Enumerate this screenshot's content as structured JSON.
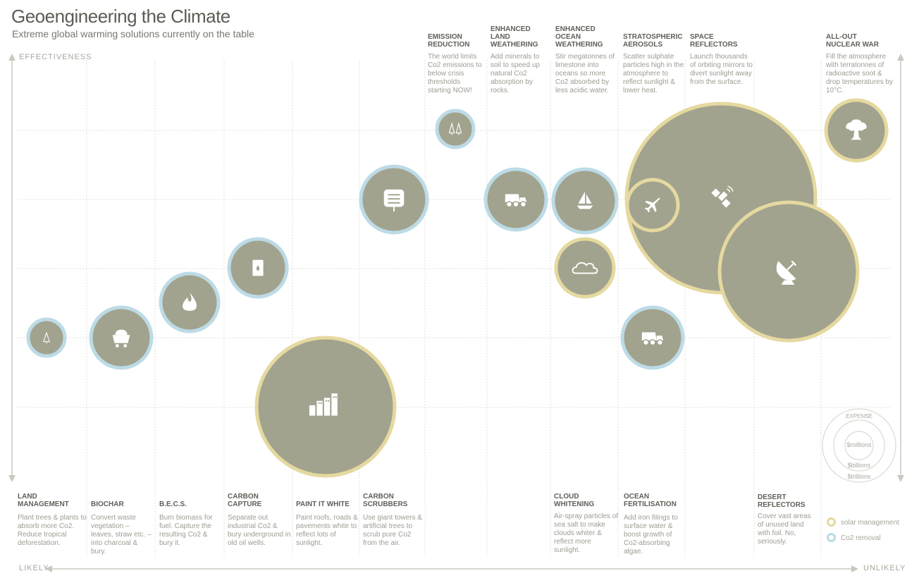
{
  "header": {
    "title": "Geoengineering the Climate",
    "subtitle": "Extreme global warming solutions currently on the table"
  },
  "axes": {
    "y_label": "EFFECTIVENESS",
    "x_left": "LIKELY",
    "x_right": "UNLIKELY"
  },
  "colors": {
    "bubble_fill": "#a2a38e",
    "solar_ring": "#e5d9a0",
    "co2_ring": "#bcdbe6",
    "grid": "#e2e2dc",
    "axis": "#c8c8c0"
  },
  "legend": {
    "expense_title": "EXPENSE",
    "expense_levels": [
      "$millions",
      "$billions",
      "$trillions"
    ],
    "solar_label": "solar management",
    "co2_label": "Co2 removal"
  },
  "top_labels": [
    {
      "id": "emission",
      "title": "EMISSION\nREDUCTION",
      "text": "The world limits Co2 emissions to below crisis thresholds starting NOW!"
    },
    {
      "id": "landw",
      "title": "ENHANCED\nLAND\nWEATHERING",
      "text": "Add minerals to soil to speed up natural Co2 absorption by rocks."
    },
    {
      "id": "oceanw",
      "title": "ENHANCED\nOCEAN\nWEATHERING",
      "text": "Stir megatonnes of limestone into oceans so more Co2 absorbed by less acidic water."
    },
    {
      "id": "strato",
      "title": "STRATOSPHERIC\nAEROSOLS",
      "text": "Scatter sulphate particles high in the atmosphere to reflect sunlight & lower heat."
    },
    {
      "id": "space",
      "title": "SPACE\nREFLECTORS",
      "text": "Launch thousands of orbiting mirrors to divert sunlight away from the surface."
    },
    {
      "id": "nuclear",
      "title": "ALL-OUT\nNUCLEAR WAR",
      "text": "Fill the atmosphere with terratonnes of radioactive soot & drop temperatures by 10°C."
    }
  ],
  "bottom_labels": [
    {
      "id": "land",
      "title": "LAND\nMANAGEMENT",
      "text": "Plant trees & plants to absorb more Co2. Reduce tropical deforestation."
    },
    {
      "id": "biochar",
      "title": "BIOCHAR",
      "text": "Convert waste vegetation – leaves, straw etc. – into charcoal & bury."
    },
    {
      "id": "becs",
      "title": "B.E.C.S.",
      "text": "Burn biomass for fuel. Capture the resulting Co2 & bury it."
    },
    {
      "id": "capture",
      "title": "CARBON\nCAPTURE",
      "text": "Separate out industrial Co2 & bury underground in old oil wells."
    },
    {
      "id": "paint",
      "title": "PAINT IT WHITE",
      "text": "Paint roofs, roads & pavements white to reflect lots of sunlight."
    },
    {
      "id": "scrub",
      "title": "CARBON\nSCRUBBERS",
      "text": "Use giant towers & artificial trees to scrub pure Co2 from the air."
    },
    {
      "id": "cloud",
      "title": "CLOUD\nWHITENING",
      "text": "Air-spray particles of sea salt to make clouds whiter & reflect more sunlight."
    },
    {
      "id": "fert",
      "title": "OCEAN\nFERTILISATION",
      "text": "Add iron filings to surface water & boost growth of Co2-absorbing algae."
    },
    {
      "id": "desert",
      "title": "DESERT\nREFLECTORS",
      "text": "Cover vast areas of unused land with foil. No, seriously."
    }
  ],
  "chart_data": {
    "type": "scatter",
    "x_axis": "likelihood (LIKELY → UNLIKELY)",
    "y_axis": "EFFECTIVENESS",
    "size_encoding": "expense",
    "points": [
      {
        "name": "LAND MANAGEMENT",
        "category": "Co2 removal",
        "expense": "$millions",
        "icon": "tree-icon",
        "x": 1,
        "y": 2
      },
      {
        "name": "BIOCHAR",
        "category": "Co2 removal",
        "expense": "$billions",
        "icon": "mine-cart-icon",
        "x": 2,
        "y": 2
      },
      {
        "name": "B.E.C.S.",
        "category": "Co2 removal",
        "expense": "$billions",
        "icon": "flame-icon",
        "x": 3,
        "y": 2.5
      },
      {
        "name": "CARBON CAPTURE",
        "category": "Co2 removal",
        "expense": "$billions",
        "icon": "oil-barrel-icon",
        "x": 4,
        "y": 3
      },
      {
        "name": "PAINT IT WHITE",
        "category": "solar management",
        "expense": "$trillions",
        "icon": "city-icon",
        "x": 5,
        "y": 1
      },
      {
        "name": "CARBON SCRUBBERS",
        "category": "Co2 removal",
        "expense": "$billions",
        "icon": "scrubber-icon",
        "x": 6,
        "y": 4
      },
      {
        "name": "EMISSION REDUCTION",
        "category": "Co2 removal",
        "expense": "$millions",
        "icon": "trees-icon",
        "x": 7,
        "y": 5
      },
      {
        "name": "ENHANCED LAND WEATHERING",
        "category": "Co2 removal",
        "expense": "$billions",
        "icon": "dump-truck-icon",
        "x": 8,
        "y": 4
      },
      {
        "name": "ENHANCED OCEAN WEATHERING",
        "category": "Co2 removal",
        "expense": "$billions",
        "icon": "sailboat-icon",
        "x": 9,
        "y": 4
      },
      {
        "name": "CLOUD WHITENING",
        "category": "solar management",
        "expense": "$billions",
        "icon": "cloud-icon",
        "x": 9,
        "y": 2.5
      },
      {
        "name": "STRATOSPHERIC AEROSOLS",
        "category": "solar management",
        "expense": "$millions",
        "icon": "airplane-icon",
        "x": 10,
        "y": 4
      },
      {
        "name": "OCEAN FERTILISATION",
        "category": "Co2 removal",
        "expense": "$billions",
        "icon": "dump-truck-icon",
        "x": 10,
        "y": 2
      },
      {
        "name": "SPACE REFLECTORS",
        "category": "solar management",
        "expense": "$trillions",
        "icon": "satellite-icon",
        "x": 11,
        "y": 4
      },
      {
        "name": "DESERT REFLECTORS",
        "category": "solar management",
        "expense": "$trillions",
        "icon": "satellite-dish-icon",
        "x": 12,
        "y": 2.5
      },
      {
        "name": "ALL-OUT NUCLEAR WAR",
        "category": "solar management",
        "expense": "$billions",
        "icon": "mushroom-cloud-icon",
        "x": 13,
        "y": 5
      }
    ]
  }
}
